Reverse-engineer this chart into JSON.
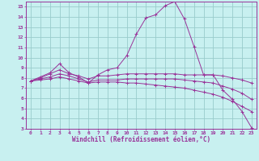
{
  "xlabel": "Windchill (Refroidissement éolien,°C)",
  "bg_color": "#c8f0f0",
  "grid_color": "#99cccc",
  "line_color": "#993399",
  "xlim": [
    -0.5,
    23.5
  ],
  "ylim": [
    3,
    15.5
  ],
  "xticks": [
    0,
    1,
    2,
    3,
    4,
    5,
    6,
    7,
    8,
    9,
    10,
    11,
    12,
    13,
    14,
    15,
    16,
    17,
    18,
    19,
    20,
    21,
    22,
    23
  ],
  "yticks": [
    3,
    4,
    5,
    6,
    7,
    8,
    9,
    10,
    11,
    12,
    13,
    14,
    15
  ],
  "lines": [
    {
      "x": [
        0,
        1,
        2,
        3,
        4,
        5,
        6,
        7,
        8,
        9,
        10,
        11,
        12,
        13,
        14,
        15,
        16,
        17,
        18,
        19,
        20,
        21,
        22,
        23
      ],
      "y": [
        7.7,
        8.1,
        8.5,
        9.4,
        8.5,
        8.1,
        7.5,
        8.3,
        8.8,
        9.0,
        10.2,
        12.3,
        13.9,
        14.2,
        15.1,
        15.5,
        13.8,
        11.1,
        8.3,
        8.3,
        6.8,
        5.9,
        4.7,
        3.1
      ]
    },
    {
      "x": [
        0,
        1,
        2,
        3,
        4,
        5,
        6,
        7,
        8,
        9,
        10,
        11,
        12,
        13,
        14,
        15,
        16,
        17,
        18,
        19,
        20,
        21,
        22,
        23
      ],
      "y": [
        7.7,
        8.0,
        8.4,
        8.8,
        8.4,
        8.2,
        7.9,
        8.2,
        8.2,
        8.3,
        8.4,
        8.4,
        8.4,
        8.4,
        8.4,
        8.4,
        8.3,
        8.3,
        8.3,
        8.3,
        8.2,
        8.0,
        7.8,
        7.5
      ]
    },
    {
      "x": [
        0,
        1,
        2,
        3,
        4,
        5,
        6,
        7,
        8,
        9,
        10,
        11,
        12,
        13,
        14,
        15,
        16,
        17,
        18,
        19,
        20,
        21,
        22,
        23
      ],
      "y": [
        7.7,
        7.9,
        8.1,
        8.4,
        8.2,
        7.9,
        7.6,
        7.8,
        7.8,
        7.8,
        7.9,
        7.9,
        7.9,
        7.9,
        7.9,
        7.9,
        7.8,
        7.7,
        7.6,
        7.5,
        7.2,
        6.9,
        6.5,
        5.9
      ]
    },
    {
      "x": [
        0,
        1,
        2,
        3,
        4,
        5,
        6,
        7,
        8,
        9,
        10,
        11,
        12,
        13,
        14,
        15,
        16,
        17,
        18,
        19,
        20,
        21,
        22,
        23
      ],
      "y": [
        7.7,
        7.8,
        7.9,
        8.1,
        7.9,
        7.7,
        7.5,
        7.6,
        7.6,
        7.6,
        7.5,
        7.5,
        7.4,
        7.3,
        7.2,
        7.1,
        7.0,
        6.8,
        6.6,
        6.4,
        6.1,
        5.7,
        5.2,
        4.7
      ]
    }
  ]
}
